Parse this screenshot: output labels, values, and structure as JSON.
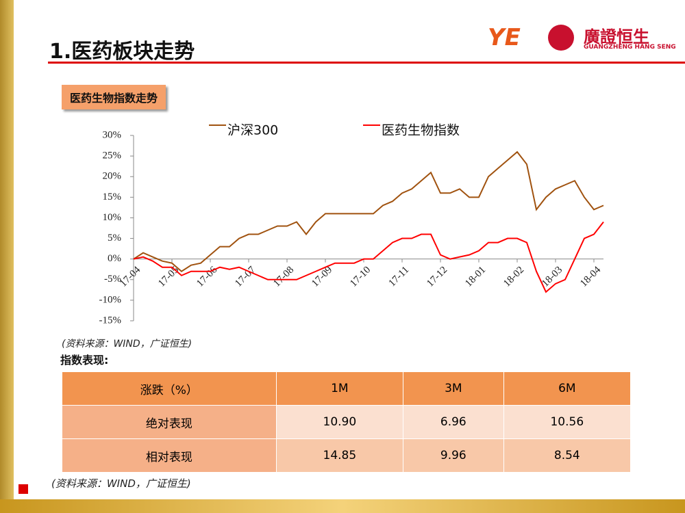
{
  "header": {
    "title": "1.医药板块走势",
    "logo_mark": "YE",
    "logo_name": "廣證恒生",
    "logo_sub": "GUANGZHENG HANG SENG"
  },
  "section_label": "医药生物指数走势",
  "chart_source": "(资料来源：WIND，广证恒生)",
  "chart_data": {
    "type": "line",
    "categories": [
      "17-04",
      null,
      null,
      null,
      "17-05",
      null,
      null,
      null,
      "17-06",
      null,
      null,
      null,
      "17-07",
      null,
      null,
      null,
      "17-08",
      null,
      null,
      null,
      "17-09",
      null,
      null,
      null,
      "17-10",
      null,
      null,
      null,
      "17-11",
      null,
      null,
      null,
      "17-12",
      null,
      null,
      null,
      "18-01",
      null,
      null,
      null,
      "18-02",
      null,
      null,
      null,
      "18-03",
      null,
      null,
      null,
      "18-04",
      null
    ],
    "series": [
      {
        "name": "沪深300",
        "color": "#a0520f",
        "values": [
          0,
          1.5,
          0.5,
          -0.5,
          -1,
          -3,
          -1.5,
          -1,
          1,
          3,
          3,
          5,
          6,
          6,
          7,
          8,
          8,
          9,
          6,
          9,
          11,
          11,
          11,
          11,
          11,
          11,
          13,
          14,
          16,
          17,
          19,
          21,
          16,
          16,
          17,
          15,
          15,
          20,
          22,
          24,
          26,
          23,
          12,
          15,
          17,
          18,
          19,
          15,
          12,
          13
        ]
      },
      {
        "name": "医药生物指数",
        "color": "#ff0000",
        "values": [
          0,
          0.5,
          -0.5,
          -2,
          -2,
          -4,
          -3,
          -3,
          -3,
          -2,
          -2.5,
          -2,
          -3,
          -4,
          -5,
          -5,
          -5,
          -5,
          -4,
          -3,
          -2,
          -1,
          -1,
          -1,
          0,
          0,
          2,
          4,
          5,
          5,
          6,
          6,
          1,
          0,
          0.5,
          1,
          2,
          4,
          4,
          5,
          5,
          4,
          -3,
          -8,
          -6,
          -5,
          0,
          5,
          6,
          9
        ]
      }
    ],
    "ylim": [
      -15,
      30
    ],
    "yticks": [
      {
        "value": 30,
        "label": "30%"
      },
      {
        "value": 25,
        "label": "25%"
      },
      {
        "value": 20,
        "label": "20%"
      },
      {
        "value": 15,
        "label": "15%"
      },
      {
        "value": 10,
        "label": "10%"
      },
      {
        "value": 5,
        "label": "5%"
      },
      {
        "value": 0,
        "label": "0%"
      },
      {
        "value": -5,
        "label": "-5%"
      },
      {
        "value": -10,
        "label": "-10%"
      },
      {
        "value": -15,
        "label": "-15%"
      }
    ],
    "legend": "top"
  },
  "table_title": "指数表现:",
  "table": {
    "header": [
      "涨跌（%）",
      "1M",
      "3M",
      "6M"
    ],
    "rows": [
      [
        "绝对表现",
        "10.90",
        "6.96",
        "10.56"
      ],
      [
        "相对表现",
        "14.85",
        "9.96",
        "8.54"
      ]
    ]
  },
  "table_source": "(资料来源：WIND，广证恒生)"
}
